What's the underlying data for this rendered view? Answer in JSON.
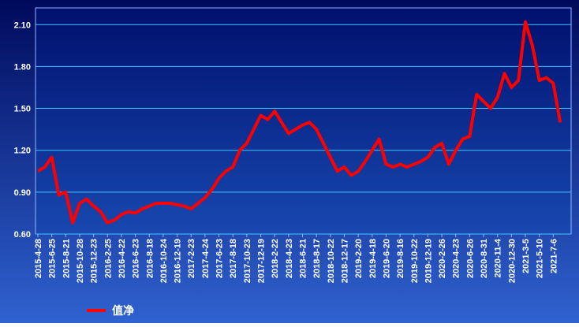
{
  "chart_data": {
    "type": "line",
    "categories": [
      "2015-4-28",
      null,
      "2015-6-25",
      null,
      "2015-8-21",
      null,
      "2015-10-28",
      null,
      "2015-12-23",
      null,
      "2016-2-25",
      null,
      "2016-4-22",
      null,
      "2016-6-23",
      null,
      "2016-8-18",
      null,
      "2016-10-24",
      null,
      "2016-12-19",
      null,
      "2017-2-23",
      null,
      "2017-4-24",
      null,
      "2017-6-23",
      null,
      "2017-8-18",
      null,
      "2017-10-23",
      null,
      "2017-12-19",
      null,
      "2018-2-22",
      null,
      "2018-4-23",
      null,
      "2018-6-21",
      null,
      "2018-8-17",
      null,
      "2018-10-22",
      null,
      "2018-12-17",
      null,
      "2019-2-20",
      null,
      "2019-4-18",
      null,
      "2019-6-20",
      null,
      "2019-8-16",
      null,
      "2019-10-22",
      null,
      "2019-12-19",
      null,
      "2020-2-26",
      null,
      "2020-4-23",
      null,
      "2020-6-26",
      null,
      "2020-8-31",
      null,
      "2020-11-4",
      null,
      "2020-12-30",
      null,
      "2021-3-5",
      null,
      "2021-5-10",
      null,
      "2021-7-6",
      null
    ],
    "series": [
      {
        "name": "值净",
        "color": "#ff0000",
        "values": [
          1.05,
          1.08,
          1.15,
          0.88,
          0.9,
          0.68,
          0.82,
          0.85,
          0.8,
          0.76,
          0.68,
          0.7,
          0.74,
          0.76,
          0.75,
          0.78,
          0.8,
          0.82,
          0.82,
          0.82,
          0.81,
          0.8,
          0.78,
          0.82,
          0.86,
          0.92,
          1.0,
          1.05,
          1.08,
          1.2,
          1.25,
          1.35,
          1.45,
          1.42,
          1.48,
          1.4,
          1.32,
          1.35,
          1.38,
          1.4,
          1.35,
          1.25,
          1.15,
          1.05,
          1.08,
          1.02,
          1.05,
          1.12,
          1.2,
          1.28,
          1.1,
          1.08,
          1.1,
          1.08,
          1.1,
          1.12,
          1.15,
          1.22,
          1.25,
          1.1,
          1.2,
          1.28,
          1.3,
          1.6,
          1.55,
          1.5,
          1.58,
          1.75,
          1.65,
          1.7,
          2.12,
          1.95,
          1.7,
          1.72,
          1.68,
          1.4
        ]
      }
    ],
    "ylim": [
      0.6,
      2.22
    ],
    "yticks": [
      {
        "value": 0.6,
        "label": "0.60"
      },
      {
        "value": 0.9,
        "label": "0.90"
      },
      {
        "value": 1.2,
        "label": "1.20"
      },
      {
        "value": 1.5,
        "label": "1.50"
      },
      {
        "value": 1.8,
        "label": "1.80"
      },
      {
        "value": 2.1,
        "label": "2.10"
      }
    ],
    "grid": true
  }
}
